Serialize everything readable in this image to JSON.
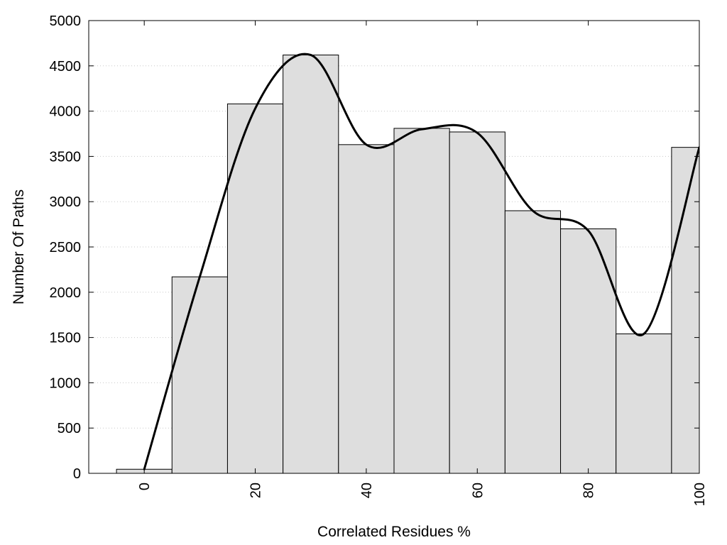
{
  "chart_data": {
    "type": "bar",
    "title": "",
    "xlabel": "Correlated Residues %",
    "ylabel": "Number Of Paths",
    "xlim": [
      -10,
      100
    ],
    "ylim": [
      0,
      5000
    ],
    "x_ticks": [
      0,
      20,
      40,
      60,
      80,
      100
    ],
    "y_ticks": [
      0,
      500,
      1000,
      1500,
      2000,
      2500,
      3000,
      3500,
      4000,
      4500,
      5000
    ],
    "bar_width": 10,
    "x": [
      0,
      10,
      20,
      30,
      40,
      50,
      60,
      70,
      80,
      90,
      100
    ],
    "values": [
      45,
      2170,
      4080,
      4620,
      3630,
      3810,
      3770,
      2900,
      2700,
      1540,
      3600
    ],
    "grid": {
      "y": true,
      "x": false,
      "style": "dotted"
    },
    "legend": "none",
    "colors": {
      "bar_fill": "#dedede",
      "bar_stroke": "#000000",
      "line": "#000000",
      "grid": "#c8c8c8"
    },
    "smooth_line": {
      "points": [
        [
          0,
          45
        ],
        [
          10,
          2170
        ],
        [
          20,
          4030
        ],
        [
          30,
          4620
        ],
        [
          40,
          3630
        ],
        [
          50,
          3800
        ],
        [
          60,
          3760
        ],
        [
          70,
          2900
        ],
        [
          80,
          2680
        ],
        [
          90,
          1540
        ],
        [
          100,
          3600
        ]
      ]
    }
  }
}
